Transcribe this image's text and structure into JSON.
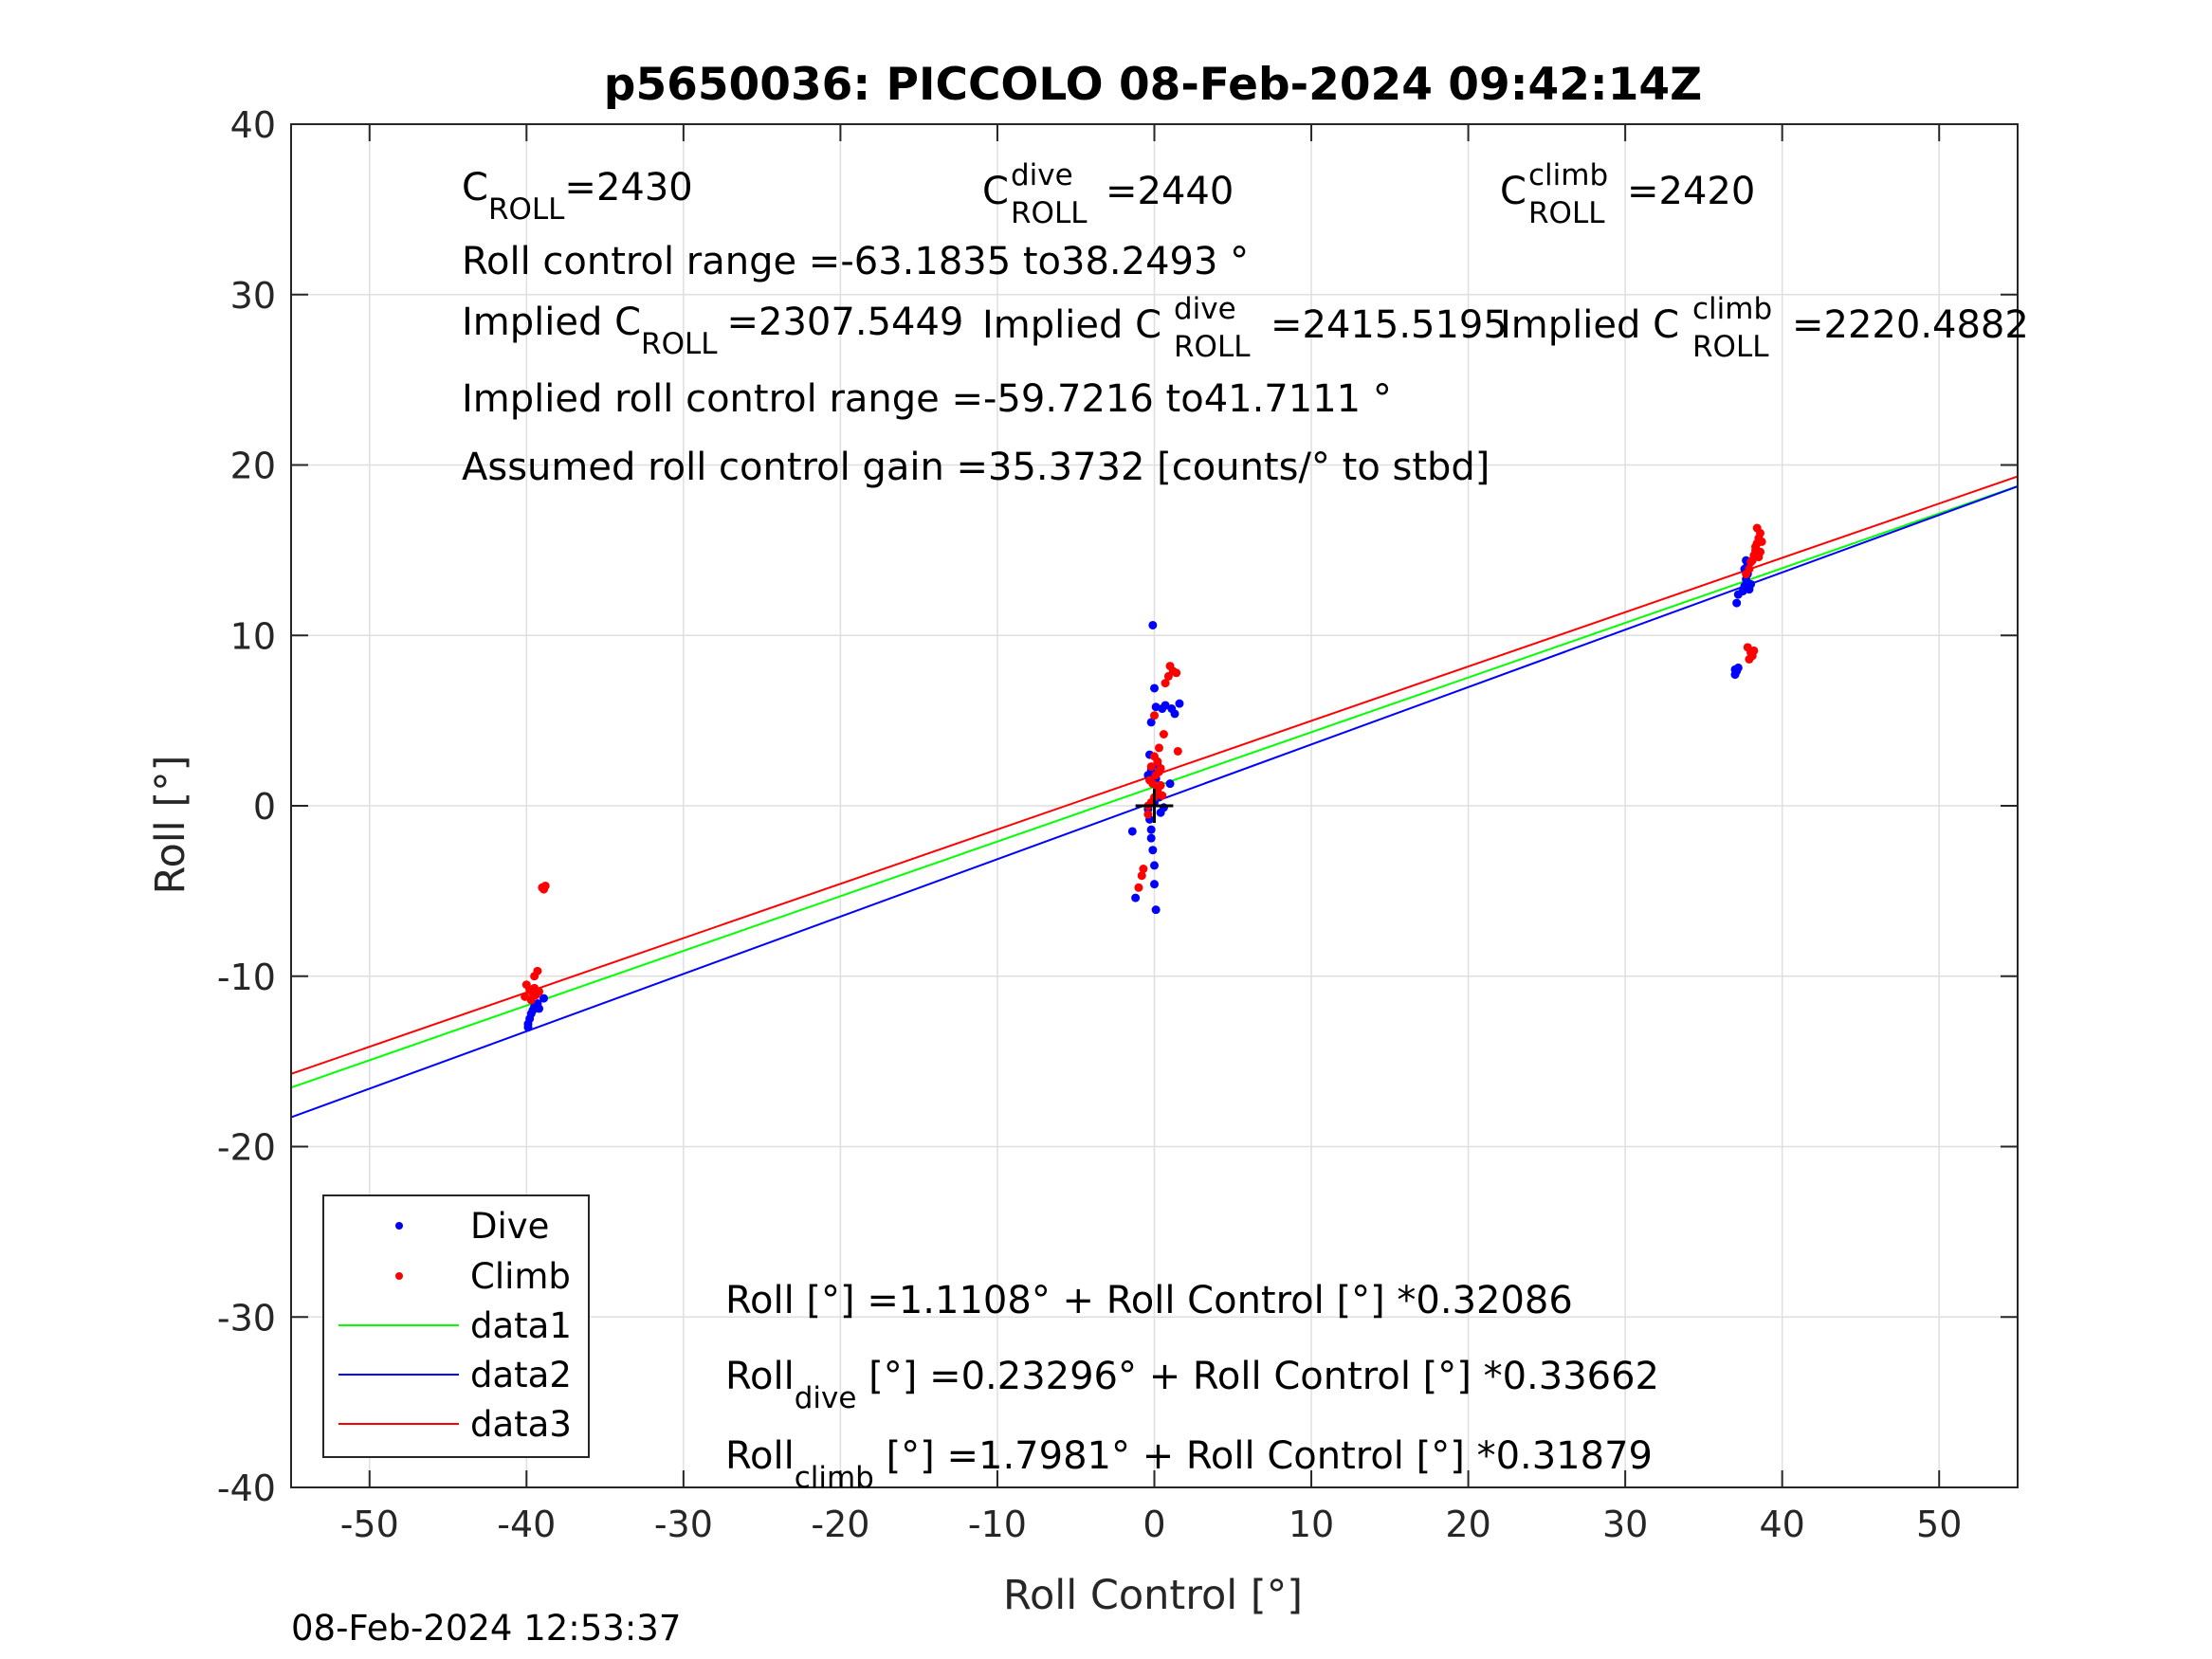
{
  "chart_data": {
    "type": "scatter",
    "title": "p5650036: PICCOLO 08-Feb-2024 09:42:14Z",
    "xlabel": "Roll Control [°]",
    "ylabel": "Roll [°]",
    "xlim": [
      -55,
      55
    ],
    "ylim": [
      -40,
      40
    ],
    "xticks": [
      -50,
      -40,
      -30,
      -20,
      -10,
      0,
      10,
      20,
      30,
      40,
      50
    ],
    "yticks": [
      -40,
      -30,
      -20,
      -10,
      0,
      10,
      20,
      30,
      40
    ],
    "grid": true,
    "legend_position": "bottom-left",
    "series": [
      {
        "name": "Dive",
        "kind": "scatter",
        "color": "#0000ff",
        "points": [
          [
            -39.9,
            -12.8
          ],
          [
            -39.8,
            -12.5
          ],
          [
            -39.7,
            -12.2
          ],
          [
            -39.6,
            -12.0
          ],
          [
            -39.5,
            -11.8
          ],
          [
            -39.9,
            -13.0
          ],
          [
            -39.3,
            -11.6
          ],
          [
            -38.9,
            -11.3
          ],
          [
            -39.2,
            -11.9
          ],
          [
            -1.2,
            -5.4
          ],
          [
            -1.4,
            -1.5
          ],
          [
            -0.4,
            -0.2
          ],
          [
            -0.3,
            -0.8
          ],
          [
            -0.2,
            -1.4
          ],
          [
            -0.2,
            -1.9
          ],
          [
            -0.1,
            -2.6
          ],
          [
            0.0,
            -3.5
          ],
          [
            0.0,
            -4.6
          ],
          [
            0.1,
            -6.1
          ],
          [
            -0.1,
            10.6
          ],
          [
            0.0,
            6.9
          ],
          [
            0.5,
            5.7
          ],
          [
            0.7,
            5.9
          ],
          [
            1.1,
            5.7
          ],
          [
            1.3,
            5.4
          ],
          [
            1.6,
            6.0
          ],
          [
            0.1,
            5.8
          ],
          [
            -0.2,
            4.9
          ],
          [
            -0.3,
            3.0
          ],
          [
            -0.2,
            2.1
          ],
          [
            0.1,
            1.6
          ],
          [
            0.2,
            1.0
          ],
          [
            0.3,
            0.5
          ],
          [
            0.0,
            0.2
          ],
          [
            0.4,
            -0.4
          ],
          [
            0.6,
            -0.1
          ],
          [
            1.0,
            1.3
          ],
          [
            -0.4,
            1.8
          ],
          [
            0.2,
            2.4
          ],
          [
            37.0,
            7.7
          ],
          [
            37.1,
            7.9
          ],
          [
            37.2,
            8.1
          ],
          [
            37.0,
            8.0
          ],
          [
            37.1,
            11.9
          ],
          [
            37.2,
            12.4
          ],
          [
            37.5,
            12.6
          ],
          [
            37.6,
            12.9
          ],
          [
            37.7,
            13.3
          ],
          [
            37.8,
            13.6
          ],
          [
            37.6,
            13.9
          ],
          [
            37.8,
            14.2
          ],
          [
            37.7,
            14.4
          ],
          [
            38.0,
            13.0
          ],
          [
            37.9,
            12.7
          ]
        ]
      },
      {
        "name": "Climb",
        "kind": "scatter",
        "color": "#ff0000",
        "points": [
          [
            -39.0,
            -4.8
          ],
          [
            -38.8,
            -4.7
          ],
          [
            -38.9,
            -4.9
          ],
          [
            -39.3,
            -9.7
          ],
          [
            -39.5,
            -10.0
          ],
          [
            -40.0,
            -10.5
          ],
          [
            -39.8,
            -10.8
          ],
          [
            -39.6,
            -11.0
          ],
          [
            -39.4,
            -11.1
          ],
          [
            -40.1,
            -11.2
          ],
          [
            -39.7,
            -11.4
          ],
          [
            -39.5,
            -10.7
          ],
          [
            -39.2,
            -10.9
          ],
          [
            -1.0,
            -4.8
          ],
          [
            -0.8,
            -4.1
          ],
          [
            -0.7,
            -3.7
          ],
          [
            -0.4,
            -0.5
          ],
          [
            -0.2,
            0.2
          ],
          [
            0.0,
            0.5
          ],
          [
            0.2,
            0.9
          ],
          [
            0.4,
            1.2
          ],
          [
            -0.3,
            1.5
          ],
          [
            0.1,
            1.8
          ],
          [
            0.3,
            2.0
          ],
          [
            -0.2,
            2.3
          ],
          [
            0.2,
            2.6
          ],
          [
            0.0,
            2.9
          ],
          [
            0.3,
            3.4
          ],
          [
            0.6,
            4.2
          ],
          [
            1.5,
            3.2
          ],
          [
            0.0,
            5.3
          ],
          [
            0.7,
            7.2
          ],
          [
            0.9,
            7.6
          ],
          [
            1.0,
            8.2
          ],
          [
            1.2,
            7.9
          ],
          [
            1.4,
            7.8
          ],
          [
            -0.4,
            0.0
          ],
          [
            0.5,
            0.6
          ],
          [
            -0.1,
            1.3
          ],
          [
            0.4,
            2.2
          ],
          [
            37.8,
            9.3
          ],
          [
            38.0,
            9.0
          ],
          [
            38.1,
            8.8
          ],
          [
            37.9,
            8.6
          ],
          [
            38.2,
            9.1
          ],
          [
            37.7,
            13.6
          ],
          [
            37.9,
            13.9
          ],
          [
            38.0,
            14.3
          ],
          [
            38.2,
            14.7
          ],
          [
            38.3,
            15.0
          ],
          [
            38.4,
            15.4
          ],
          [
            38.5,
            15.7
          ],
          [
            38.6,
            16.0
          ],
          [
            38.4,
            16.3
          ],
          [
            38.3,
            15.2
          ],
          [
            38.6,
            14.9
          ],
          [
            38.1,
            14.4
          ],
          [
            38.5,
            14.6
          ],
          [
            38.7,
            15.5
          ]
        ]
      },
      {
        "name": "data1",
        "kind": "line",
        "color": "#00ff00",
        "points": [
          [
            -55,
            -16.536
          ],
          [
            55,
            18.758
          ]
        ]
      },
      {
        "name": "data2",
        "kind": "line",
        "color": "#0000ff",
        "points": [
          [
            -55,
            -18.281
          ],
          [
            55,
            18.747
          ]
        ]
      },
      {
        "name": "data3",
        "kind": "line",
        "color": "#ff0000",
        "points": [
          [
            -55,
            -15.735
          ],
          [
            55,
            19.331
          ]
        ]
      }
    ],
    "annotations": {
      "c_roll": {
        "main": "C",
        "sub": "ROLL",
        "value": "=2430"
      },
      "c_roll_dive": {
        "main": "C",
        "sup": "dive",
        "sub": "ROLL",
        "value": "=2440"
      },
      "c_roll_climb": {
        "main": "C",
        "sup": "climb",
        "sub": "ROLL",
        "value": "=2420"
      },
      "roll_range": "Roll control range =-63.1835 to38.2493 °",
      "implied_c_roll": {
        "main": "Implied C",
        "sub": "ROLL",
        "value": "=2307.5449"
      },
      "implied_c_roll_dive": {
        "main": "Implied C",
        "sup": "dive",
        "sub": "ROLL",
        "value": "=2415.5195"
      },
      "implied_c_roll_climb": {
        "main": "Implied C",
        "sup": "climb",
        "sub": "ROLL",
        "value": "=2220.4882"
      },
      "implied_range": "Implied roll control range =-59.7216 to41.7111 °",
      "gain": "Assumed roll control gain =35.3732 [counts/° to stbd]",
      "fit_all": "Roll [°] =1.1108° + Roll Control [°] *0.32086",
      "fit_dive": {
        "main": "Roll",
        "sub": "dive",
        "rest": " [°] =0.23296° + Roll Control [°] *0.33662"
      },
      "fit_climb": {
        "main": "Roll",
        "sub": "climb",
        "rest": " [°] =1.7981° + Roll Control [°] *0.31879"
      }
    },
    "timestamp": "08-Feb-2024 12:53:37"
  }
}
